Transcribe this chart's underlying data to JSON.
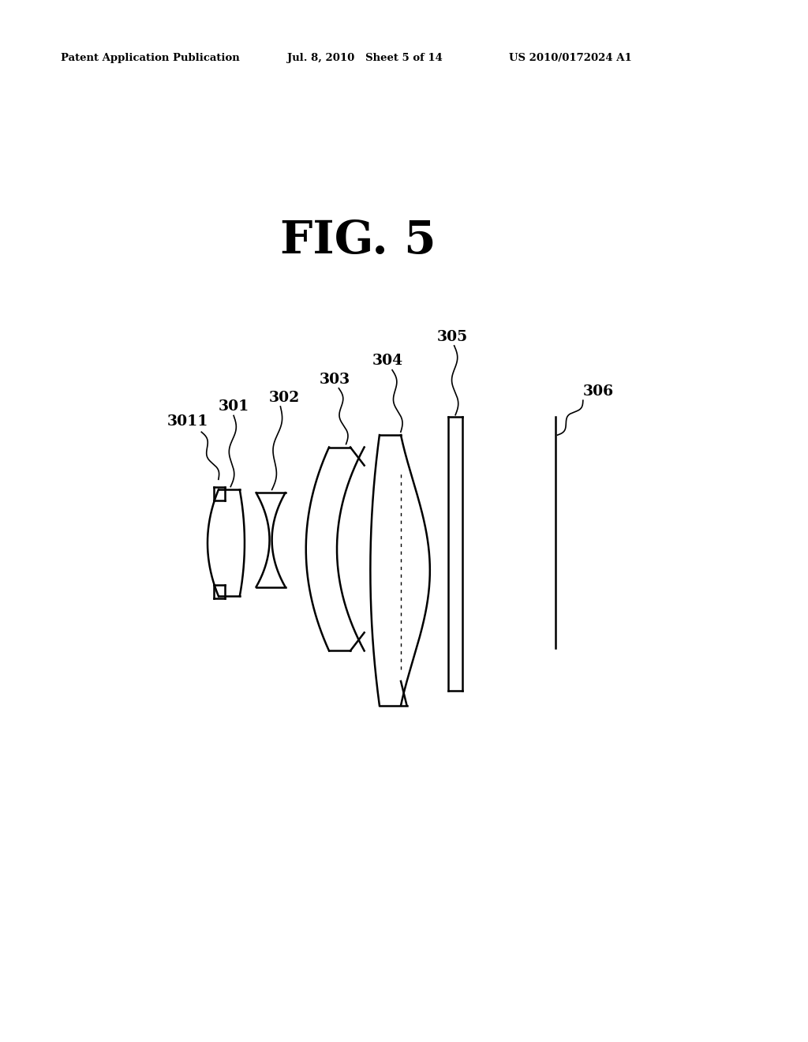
{
  "title": "FIG. 5",
  "header_left": "Patent Application Publication",
  "header_mid": "Jul. 8, 2010   Sheet 5 of 14",
  "header_right": "US 2010/0172024 A1",
  "bg_color": "#ffffff",
  "line_color": "#000000"
}
